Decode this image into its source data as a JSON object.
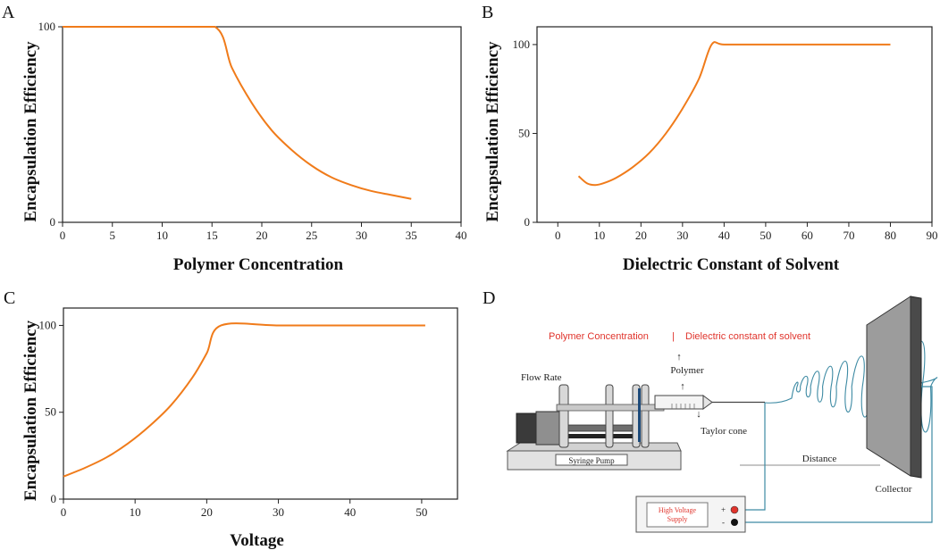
{
  "colors": {
    "line": "#f07b1a",
    "axis": "#222222",
    "fiber": "#3d8aa3",
    "red": "#e0342c"
  },
  "chart_data": [
    {
      "panel": "A",
      "type": "line",
      "xlabel": "Polymer Concentration",
      "ylabel": "Encapsulation Efficiency",
      "xlim": [
        0,
        40
      ],
      "ylim": [
        0,
        100
      ],
      "xticks": [
        0,
        5,
        10,
        15,
        20,
        25,
        30,
        35,
        40
      ],
      "yticks": [
        0,
        100
      ],
      "series": [
        {
          "name": "Encapsulation Efficiency",
          "x": [
            0,
            5,
            10,
            15.3,
            17,
            19,
            21,
            23,
            25,
            27,
            29,
            31,
            33,
            35
          ],
          "y": [
            100,
            100,
            100,
            100,
            79,
            61,
            47,
            37,
            29,
            23,
            19,
            16,
            14,
            12
          ]
        }
      ]
    },
    {
      "panel": "B",
      "type": "line",
      "xlabel": "Dielectric Constant of Solvent",
      "ylabel": "Encapsulation Efficiency",
      "xlim": [
        -5,
        90
      ],
      "ylim": [
        0,
        110
      ],
      "xticks": [
        0,
        10,
        20,
        30,
        40,
        50,
        60,
        70,
        80,
        90
      ],
      "yticks": [
        0,
        50,
        100
      ],
      "series": [
        {
          "name": "Encapsulation Efficiency",
          "x": [
            5,
            7,
            9,
            11,
            14,
            18,
            22,
            26,
            30,
            34,
            37,
            40,
            50,
            60,
            70,
            80
          ],
          "y": [
            26,
            22,
            21,
            22,
            25,
            31,
            39,
            50,
            64,
            81,
            100,
            100,
            100,
            100,
            100,
            100
          ]
        }
      ]
    },
    {
      "panel": "C",
      "type": "line",
      "xlabel": "Voltage",
      "ylabel": "Encapsulation Efficiency",
      "xlim": [
        0,
        55
      ],
      "ylim": [
        0,
        110
      ],
      "xticks": [
        0,
        10,
        20,
        30,
        40,
        50
      ],
      "yticks": [
        0,
        50,
        100
      ],
      "series": [
        {
          "name": "Encapsulation Efficiency",
          "x": [
            0,
            3,
            6,
            9,
            12,
            15,
            18,
            20,
            22,
            30,
            40,
            50.5
          ],
          "y": [
            13,
            18,
            24,
            32,
            42,
            54,
            70,
            84,
            100,
            100,
            100,
            100
          ]
        }
      ]
    }
  ],
  "diagram": {
    "letter": "D",
    "polymer_concentration": "Polymer Concentration",
    "separator": "|",
    "dielectric": "Dielectric constant of solvent",
    "polymer": "Polymer",
    "flow_rate": "Flow Rate",
    "taylor_cone": "Taylor cone",
    "syringe_pump": "Syringe Pump",
    "distance": "Distance",
    "collector": "Collector",
    "hv_line1": "High Voltage",
    "hv_line2": "Supply",
    "plus": "+",
    "minus": "-"
  }
}
